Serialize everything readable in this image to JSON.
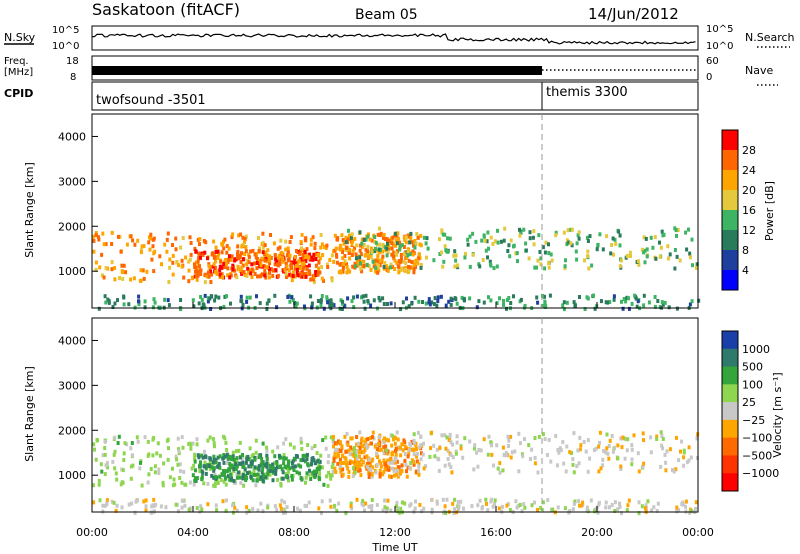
{
  "header": {
    "site": "Saskatoon (fitACF)",
    "beam": "Beam 05",
    "date": "14/Jun/2012"
  },
  "strips": {
    "nsky": {
      "label": "N.Sky",
      "axis_right": [
        "10^5",
        "10^0"
      ],
      "axis_left": [
        "10^5",
        "10^0"
      ],
      "right_label": "N.Search",
      "right_label_style": "dotted"
    },
    "freq": {
      "label_lines": [
        "Freq.",
        "[MHz]"
      ],
      "left_ticks": [
        "18",
        "8"
      ],
      "right_ticks": [
        "60",
        "0"
      ],
      "right_label": "Nave",
      "right_label_style": "dotted"
    },
    "cpid": {
      "label": "CPID",
      "segments": [
        {
          "name": "twofsound",
          "id": "-3501",
          "start_hour": 0
        },
        {
          "name": "themis",
          "id": "3300",
          "start_hour": 18
        }
      ]
    }
  },
  "panels": {
    "power": {
      "ylabel": "Slant Range [km]",
      "yticks": [
        "4000",
        "3000",
        "2000",
        "1000"
      ],
      "colorbar_label": "Power [dB]",
      "colorbar_ticks": [
        "28",
        "24",
        "20",
        "16",
        "12",
        "8",
        "4"
      ],
      "colorbar_colors": [
        "#ff0000",
        "#ff6600",
        "#ffa500",
        "#e6c83c",
        "#3cb464",
        "#2a7a5c",
        "#1f3f9f",
        "#0000ff"
      ]
    },
    "velocity": {
      "ylabel": "Slant Range [km]",
      "yticks": [
        "4000",
        "3000",
        "2000",
        "1000"
      ],
      "colorbar_label": "Velocity [m s⁻¹]",
      "colorbar_ticks": [
        "1000",
        "500",
        "100",
        "25",
        "−25",
        "−100",
        "−500",
        "−1000"
      ],
      "colorbar_colors": [
        "#1a3fa8",
        "#2f7a6a",
        "#33a53a",
        "#8fd650",
        "#c8c8c8",
        "#ffa500",
        "#ff6a00",
        "#ff3300",
        "#ff0000"
      ]
    }
  },
  "xaxis": {
    "label": "Time UT",
    "ticks": [
      "00:00",
      "04:00",
      "08:00",
      "12:00",
      "16:00",
      "20:00",
      "00:00"
    ]
  },
  "chart_data": {
    "type": "heatmap",
    "title": "Saskatoon (fitACF)  Beam 05  14/Jun/2012",
    "x_units": "hours UT",
    "xlim": [
      0,
      24
    ],
    "y_units": "km",
    "ylim": [
      180,
      4500
    ],
    "power_clim": [
      0,
      32
    ],
    "velocity_clim": [
      -1000,
      1000
    ],
    "features": [
      {
        "time_range": [
          0,
          9.5
        ],
        "range_km": [
          800,
          1900
        ],
        "power_dB": 24,
        "velocity": 200
      },
      {
        "time_range": [
          4,
          9
        ],
        "range_km": [
          900,
          1500
        ],
        "power_dB": 28,
        "velocity": 600
      },
      {
        "time_range": [
          9.5,
          13
        ],
        "range_km": [
          1000,
          1900
        ],
        "power_dB": 24,
        "velocity": -300
      },
      {
        "time_range": [
          10,
          24
        ],
        "range_km": [
          1100,
          2000
        ],
        "power_dB": 14,
        "velocity": 10
      },
      {
        "time_range": [
          0,
          24
        ],
        "range_km": [
          200,
          500
        ],
        "power_dB": 10,
        "velocity": 0
      }
    ]
  }
}
